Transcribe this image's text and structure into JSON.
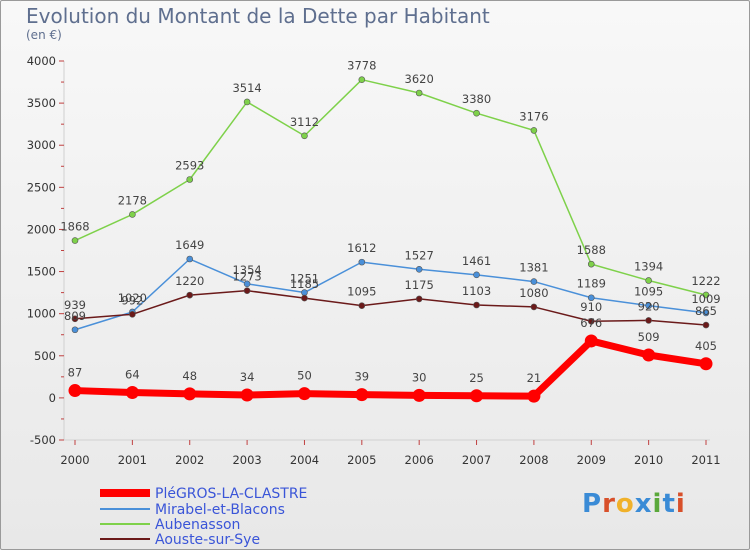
{
  "header": {
    "title": "Evolution du Montant de la Dette par Habitant",
    "subtitle": "(en €)"
  },
  "logo": {
    "text": "Proxiti",
    "colors": [
      "#3a8bd6",
      "#d8502a",
      "#f0b12a",
      "#3a8bd6",
      "#5aa83a",
      "#3a8bd6",
      "#d8502a"
    ]
  },
  "chart_data": {
    "type": "line",
    "title": "Evolution du Montant de la Dette par Habitant",
    "subtitle": "(en €)",
    "ylim": [
      -500,
      4000
    ],
    "y_ticks": [
      -500,
      0,
      500,
      1000,
      1500,
      2000,
      2500,
      3000,
      3500,
      4000
    ],
    "x": [
      "2000",
      "2001",
      "2002",
      "2003",
      "2004",
      "2005",
      "2006",
      "2007",
      "2008",
      "2009",
      "2010",
      "2011"
    ],
    "grid": false,
    "legend_placement": "bottom-left",
    "series": [
      {
        "name": "PléGROS-LA-CLASTRE",
        "color": "#ff0000",
        "emphasis": true,
        "values": [
          87,
          64,
          48,
          34,
          50,
          39,
          30,
          25,
          21,
          676,
          509,
          405
        ]
      },
      {
        "name": "Mirabel-et-Blacons",
        "color": "#4a90d9",
        "values": [
          809,
          1020,
          1649,
          1354,
          1251,
          1612,
          1527,
          1461,
          1381,
          1189,
          1095,
          1009
        ]
      },
      {
        "name": "Aubenasson",
        "color": "#7ed14a",
        "values": [
          1868,
          2178,
          2593,
          3514,
          3112,
          3778,
          3620,
          3380,
          3176,
          1588,
          1394,
          1222
        ]
      },
      {
        "name": "Aouste-sur-Sye",
        "color": "#6b1a1a",
        "values": [
          939,
          992,
          1220,
          1273,
          1185,
          1095,
          1175,
          1103,
          1080,
          910,
          920,
          865
        ]
      }
    ]
  }
}
